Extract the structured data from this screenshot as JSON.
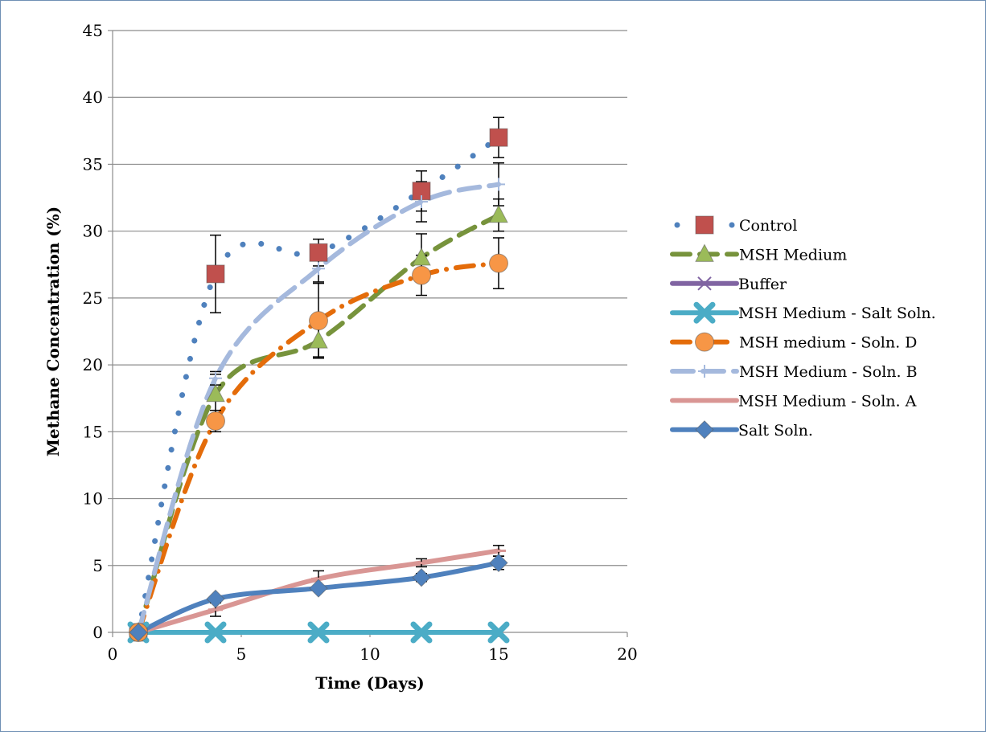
{
  "chart_data": {
    "type": "line",
    "xlabel": "Time (Days)",
    "ylabel": "Methane Concentration (%)",
    "xlim": [
      0,
      20
    ],
    "ylim": [
      0,
      45
    ],
    "xticks": [
      0,
      5,
      10,
      15,
      20
    ],
    "yticks": [
      0,
      5,
      10,
      15,
      20,
      25,
      30,
      35,
      40,
      45
    ],
    "grid": "horizontal",
    "legend_position": "right",
    "series": [
      {
        "name": "Control",
        "color": "#c0504d",
        "line_color": "#4f81bd",
        "line_style": "dotted",
        "marker": "square",
        "x": [
          1,
          4,
          8,
          12,
          15
        ],
        "y": [
          0,
          26.8,
          28.4,
          33,
          37
        ],
        "err": [
          0,
          2.9,
          1.0,
          1.5,
          1.5
        ]
      },
      {
        "name": "MSH Medium",
        "color": "#9bbb59",
        "line_color": "#77933c",
        "line_style": "dashed",
        "marker": "triangle",
        "x": [
          1,
          4,
          8,
          12,
          15
        ],
        "y": [
          0,
          17.8,
          21.8,
          28,
          31.2
        ],
        "err": [
          0,
          1.5,
          1.2,
          1.8,
          1.2
        ]
      },
      {
        "name": "Buffer",
        "color": "#8064a2",
        "line_color": "#8064a2",
        "line_style": "solid",
        "marker": "x",
        "x": [
          1,
          4,
          8,
          12,
          15
        ],
        "y": [
          0,
          0,
          0,
          0,
          0
        ],
        "err": [
          0,
          0,
          0,
          0,
          0
        ]
      },
      {
        "name": "MSH Medium - Salt Soln.",
        "color": "#4bacc6",
        "line_color": "#4bacc6",
        "line_style": "solid",
        "marker": "star",
        "x": [
          1,
          4,
          8,
          12,
          15
        ],
        "y": [
          0,
          0,
          0,
          0,
          0
        ],
        "err": [
          0,
          0,
          0,
          0,
          0
        ]
      },
      {
        "name": "MSH medium - Soln. D",
        "color": "#f79646",
        "line_color": "#e46c0a",
        "line_style": "dashdot",
        "marker": "circle",
        "x": [
          1,
          4,
          8,
          12,
          15
        ],
        "y": [
          0,
          15.8,
          23.3,
          26.7,
          27.6
        ],
        "err": [
          0,
          0.8,
          2.8,
          1.5,
          1.9
        ]
      },
      {
        "name": "MSH Medium - Soln. B",
        "color": "#a5b9dd",
        "line_color": "#a5b9dd",
        "line_style": "longdash",
        "marker": "plus",
        "x": [
          1,
          4,
          8,
          12,
          15
        ],
        "y": [
          0,
          19,
          27.2,
          32.2,
          33.5
        ],
        "err": [
          0,
          0.5,
          1.0,
          1.5,
          1.6
        ]
      },
      {
        "name": "MSH Medium - Soln. A",
        "color": "#d99694",
        "line_color": "#d99694",
        "line_style": "solid",
        "marker": "dash",
        "x": [
          1,
          4,
          8,
          12,
          15
        ],
        "y": [
          0,
          1.7,
          4,
          5.2,
          6.1
        ],
        "err": [
          0,
          0.5,
          0.6,
          0.3,
          0.4
        ]
      },
      {
        "name": "Salt Soln.",
        "color": "#4f81bd",
        "line_color": "#4f81bd",
        "line_style": "solid",
        "marker": "diamond",
        "x": [
          1,
          4,
          8,
          12,
          15
        ],
        "y": [
          0,
          2.5,
          3.3,
          4.1,
          5.2
        ],
        "err": [
          0,
          0,
          0,
          0.3,
          0.5
        ]
      }
    ]
  }
}
